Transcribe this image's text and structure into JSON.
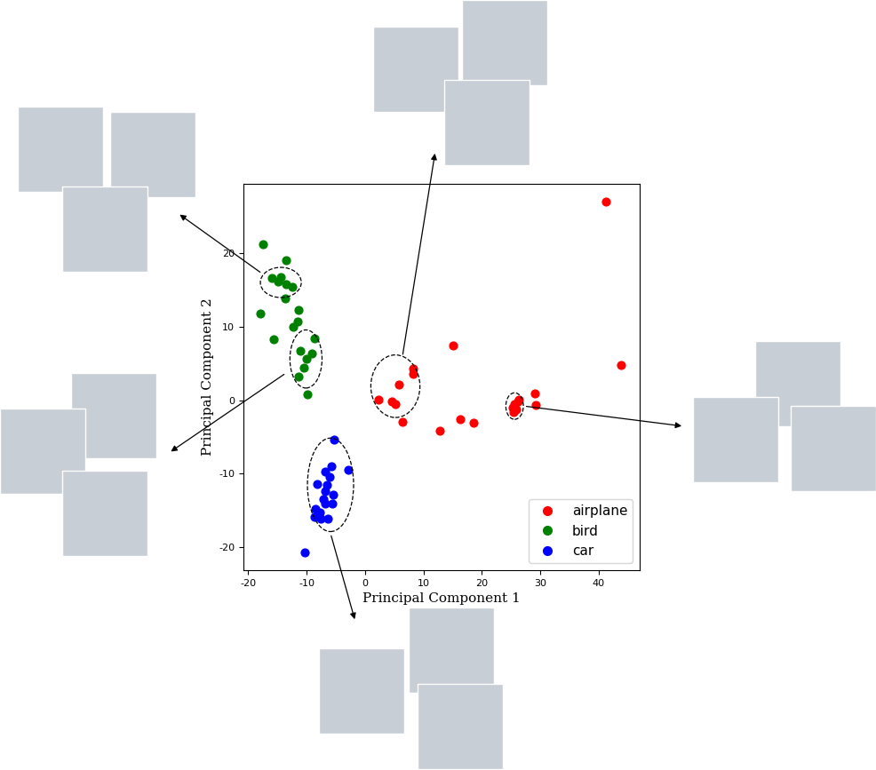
{
  "chart_data": {
    "type": "scatter",
    "x_label": "Principal Component 1",
    "y_label": "Principal Component 2",
    "xlim": [
      -20.8,
      47.0
    ],
    "ylim": [
      -23.1,
      29.4
    ],
    "xticks": [
      -20,
      -10,
      0,
      10,
      20,
      30,
      40
    ],
    "yticks": [
      -20,
      -10,
      0,
      10,
      20
    ],
    "legend": "lower right",
    "marker": "o",
    "series": [
      {
        "name": "airplane",
        "color": "#ff0000",
        "x": [
          41.2,
          43.8,
          15.1,
          8.3,
          8.3,
          5.8,
          2.3,
          4.6,
          5.2,
          6.4,
          12.8,
          16.3,
          18.6,
          29.1,
          29.2,
          25.5,
          26.2,
          25.3,
          25.8,
          25.4,
          26.3
        ],
        "y": [
          27.0,
          4.8,
          7.4,
          4.3,
          3.6,
          2.1,
          0.1,
          -0.2,
          -0.5,
          -3.0,
          -4.2,
          -2.6,
          -3.1,
          0.9,
          -0.7,
          -0.5,
          -0.2,
          -1.0,
          -1.3,
          -1.6,
          0.1
        ]
      },
      {
        "name": "bird",
        "color": "#008000",
        "x": [
          -17.4,
          -13.5,
          -15.9,
          -14.4,
          -14.8,
          -13.5,
          -12.4,
          -13.6,
          -17.9,
          -11.3,
          -11.5,
          -12.3,
          -15.6,
          -8.6,
          -11.0,
          -9.1,
          -10.0,
          -10.4,
          -11.3,
          -9.8
        ],
        "y": [
          21.2,
          19.0,
          16.6,
          16.7,
          16.1,
          15.8,
          15.4,
          13.8,
          11.8,
          12.3,
          10.7,
          10.0,
          8.3,
          8.4,
          6.7,
          6.3,
          5.6,
          4.4,
          3.2,
          0.8
        ]
      },
      {
        "name": "car",
        "color": "#0000ff",
        "x": [
          -5.3,
          -2.8,
          -5.7,
          -6.8,
          -6.0,
          -8.2,
          -6.5,
          -5.4,
          -6.8,
          -7.1,
          -5.6,
          -6.8,
          -8.5,
          -7.8,
          -8.6,
          -7.5,
          -6.3,
          -10.3
        ],
        "y": [
          -5.4,
          -9.5,
          -9.0,
          -9.7,
          -10.4,
          -11.4,
          -11.5,
          -12.9,
          -12.3,
          -13.4,
          -14.0,
          -14.0,
          -14.8,
          -15.2,
          -15.8,
          -16.1,
          -16.1,
          -20.7
        ]
      }
    ]
  }
}
